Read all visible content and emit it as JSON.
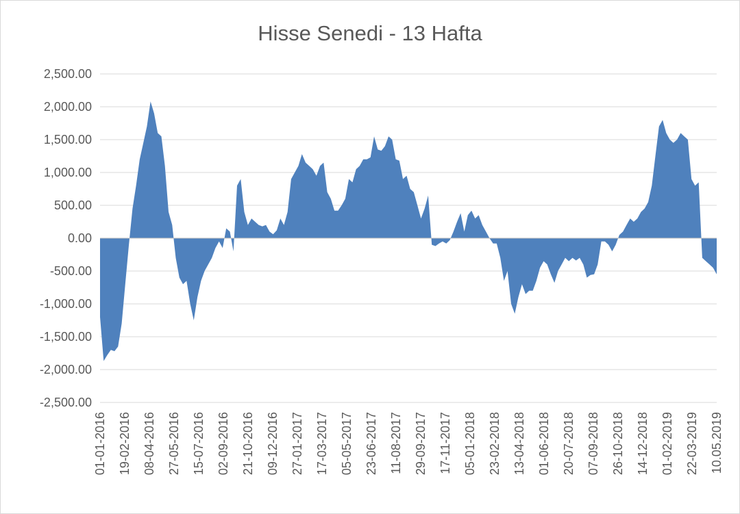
{
  "chart_data": {
    "type": "area",
    "title": "Hisse Senedi - 13 Hafta",
    "xlabel": "",
    "ylabel": "",
    "ylim": [
      -2500,
      2500
    ],
    "y_ticks": [
      2500,
      2000,
      1500,
      1000,
      500,
      0,
      -500,
      -1000,
      -1500,
      -2000,
      -2500
    ],
    "y_tick_labels": [
      "2,500.00",
      "2,000.00",
      "1,500.00",
      "1,000.00",
      "500.00",
      "0.00",
      "-500.00",
      "-1,000.00",
      "-1,500.00",
      "-2,000.00",
      "-2,500.00"
    ],
    "x_tick_labels": [
      "01-01-2016",
      "19-02-2016",
      "08-04-2016",
      "27-05-2016",
      "15-07-2016",
      "02-09-2016",
      "21-10-2016",
      "09-12-2016",
      "27-01-2017",
      "17-03-2017",
      "05-05-2017",
      "23-06-2017",
      "11-08-2017",
      "29-09-2017",
      "17-11-2017",
      "05-01-2018",
      "23-02-2018",
      "13-04-2018",
      "01-06-2018",
      "20-07-2018",
      "07-09-2018",
      "26-10-2018",
      "14-12-2018",
      "01-02-2019",
      "22-03-2019",
      "10.05.2019"
    ],
    "grid": true,
    "legend": "none",
    "color": "#4f81bd",
    "series": [
      {
        "values": [
          -1200,
          -1870,
          -1780,
          -1700,
          -1720,
          -1650,
          -1300,
          -700,
          -100,
          450,
          800,
          1200,
          1450,
          1700,
          2080,
          1900,
          1600,
          1550,
          1100,
          400,
          200,
          -300,
          -600,
          -700,
          -650,
          -1000,
          -1250,
          -900,
          -650,
          -500,
          -400,
          -300,
          -150,
          -50,
          -150,
          150,
          100,
          -200,
          800,
          900,
          400,
          200,
          300,
          250,
          200,
          180,
          200,
          100,
          60,
          120,
          300,
          200,
          400,
          900,
          1000,
          1100,
          1280,
          1150,
          1100,
          1050,
          950,
          1100,
          1150,
          700,
          600,
          420,
          420,
          500,
          600,
          900,
          850,
          1050,
          1100,
          1200,
          1200,
          1230,
          1550,
          1350,
          1330,
          1400,
          1550,
          1500,
          1200,
          1180,
          900,
          950,
          750,
          700,
          500,
          300,
          450,
          650,
          -100,
          -120,
          -80,
          -50,
          -80,
          -30,
          100,
          250,
          380,
          100,
          350,
          420,
          300,
          350,
          200,
          100,
          0,
          -80,
          -80,
          -300,
          -650,
          -500,
          -1000,
          -1150,
          -900,
          -700,
          -850,
          -800,
          -800,
          -650,
          -450,
          -350,
          -400,
          -550,
          -680,
          -500,
          -400,
          -300,
          -350,
          -300,
          -340,
          -300,
          -400,
          -600,
          -560,
          -550,
          -400,
          -50,
          -50,
          -100,
          -200,
          -100,
          50,
          100,
          200,
          300,
          250,
          300,
          400,
          450,
          550,
          800,
          1250,
          1700,
          1800,
          1600,
          1500,
          1450,
          1500,
          1600,
          1550,
          1500,
          900,
          800,
          850,
          -300,
          -350,
          -400,
          -450,
          -550
        ]
      }
    ]
  }
}
